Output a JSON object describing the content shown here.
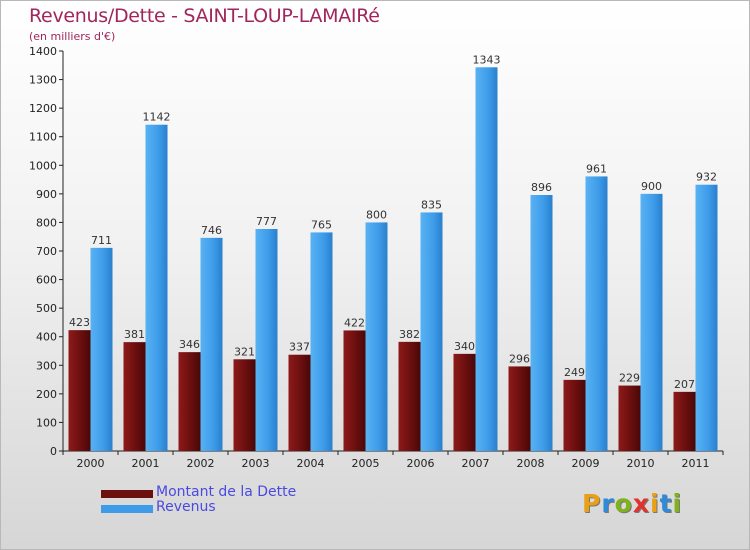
{
  "title": "Revenus/Dette - SAINT-LOUP-LAMAIRé",
  "subtitle": "(en milliers d'€)",
  "brand": {
    "text": "Proxiti",
    "letter_colors": [
      "#e9a017",
      "#2f8ad8",
      "#7fb21b",
      "#e1332c",
      "#e9a017",
      "#2f8ad8",
      "#7fb21b"
    ]
  },
  "legend": [
    {
      "label": "Montant de la Dette",
      "color": "#6b0f0f"
    },
    {
      "label": "Revenus",
      "color": "#3d9be9"
    }
  ],
  "chart_data": {
    "type": "bar",
    "title": "Revenus/Dette - SAINT-LOUP-LAMAIRé",
    "subtitle": "(en milliers d'€)",
    "categories": [
      "2000",
      "2001",
      "2002",
      "2003",
      "2004",
      "2005",
      "2006",
      "2007",
      "2008",
      "2009",
      "2010",
      "2011"
    ],
    "series": [
      {
        "name": "Montant de la Dette",
        "color": "#6b0f0f",
        "values": [
          423,
          381,
          346,
          321,
          337,
          422,
          382,
          340,
          296,
          249,
          229,
          207
        ]
      },
      {
        "name": "Revenus",
        "color": "#3d9be9",
        "values": [
          711,
          1142,
          746,
          777,
          765,
          800,
          835,
          1343,
          896,
          961,
          900,
          932
        ]
      }
    ],
    "ylim": [
      0,
      1400
    ],
    "yticks": [
      0,
      100,
      200,
      300,
      400,
      500,
      600,
      700,
      800,
      900,
      1000,
      1100,
      1200,
      1300,
      1400
    ],
    "grid": false,
    "data_labels": true,
    "legend_position": "bottom-left"
  }
}
